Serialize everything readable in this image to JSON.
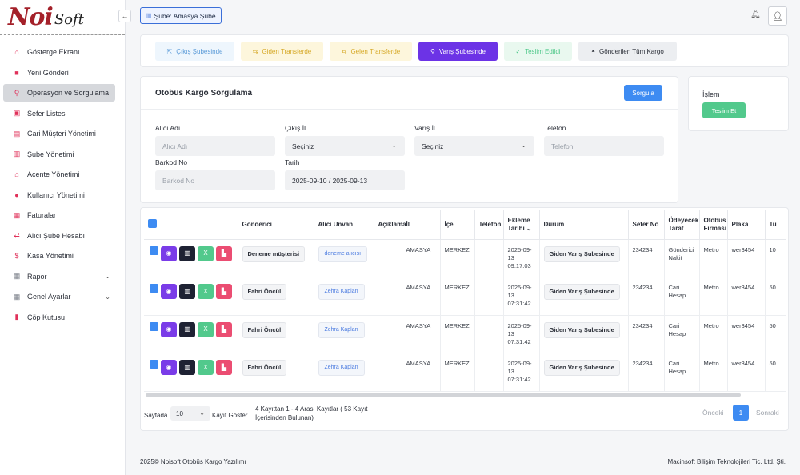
{
  "brand": {
    "noi": "Noi",
    "soft": "Soft"
  },
  "sidebar": {
    "items": [
      {
        "label": "Gösterge Ekranı",
        "icon": "home-icon"
      },
      {
        "label": "Yeni Gönderi",
        "icon": "box-icon"
      },
      {
        "label": "Operasyon ve Sorgulama",
        "icon": "search-icon"
      },
      {
        "label": "Sefer Listesi",
        "icon": "bus-icon"
      },
      {
        "label": "Cari Müşteri Yönetimi",
        "icon": "id-card-icon"
      },
      {
        "label": "Şube Yönetimi",
        "icon": "building-icon"
      },
      {
        "label": "Acente Yönetimi",
        "icon": "bank-icon"
      },
      {
        "label": "Kullanıcı Yönetimi",
        "icon": "user-icon"
      },
      {
        "label": "Faturalar",
        "icon": "invoice-icon"
      },
      {
        "label": "Alıcı Şube Hesabı",
        "icon": "exchange-icon"
      },
      {
        "label": "Kasa Yönetimi",
        "icon": "money-icon"
      },
      {
        "label": "Rapor",
        "icon": "grid-icon"
      },
      {
        "label": "Genel Ayarlar",
        "icon": "grid-icon"
      },
      {
        "label": "Çöp Kutusu",
        "icon": "trash-icon"
      }
    ]
  },
  "header": {
    "branch": "Şube: Amasya Şube"
  },
  "tabs": [
    {
      "label": "Çıkış Şubesinde",
      "bg": "#eef6fd",
      "fg": "#5b9bd8"
    },
    {
      "label": "Giden Transferde",
      "bg": "#fdf6dc",
      "fg": "#d6a928"
    },
    {
      "label": "Gelen Transferde",
      "bg": "#fdf6dc",
      "fg": "#d6a928"
    },
    {
      "label": "Varış Şubesinde",
      "bg": "#6c33e6",
      "fg": "#ffffff"
    },
    {
      "label": "Teslim Edildi",
      "bg": "#e9f8ef",
      "fg": "#52c98c"
    },
    {
      "label": "Gönderilen Tüm Kargo",
      "bg": "#eceef1",
      "fg": "#2b2f38"
    }
  ],
  "search": {
    "title": "Otobüs Kargo Sorgulama",
    "query_button": "Sorgula",
    "fields": {
      "alici_adi": {
        "label": "Alıcı Adı",
        "placeholder": "Alıcı Adı"
      },
      "cikis_il": {
        "label": "Çıkış İl",
        "value": "Seçiniz"
      },
      "varis_il": {
        "label": "Varış İl",
        "value": "Seçiniz"
      },
      "telefon": {
        "label": "Telefon",
        "placeholder": "Telefon"
      },
      "barkod": {
        "label": "Barkod No",
        "placeholder": "Barkod No"
      },
      "tarih": {
        "label": "Tarih",
        "value": "2025-09-10 / 2025-09-13"
      }
    }
  },
  "islem": {
    "title": "İşlem",
    "button": "Teslim Et"
  },
  "table": {
    "headers": [
      "Gönderici",
      "Alıcı Unvan",
      "Açıklama",
      "İl",
      "İçe",
      "Telefon",
      "Ekleme Tarihi",
      "Durum",
      "Sefer No",
      "Ödeyecek Taraf",
      "Otobüs Firması",
      "Plaka",
      "Tu"
    ],
    "rows": [
      {
        "sender": "Deneme müşterisi",
        "receiver": "deneme alıcısı",
        "il": "AMASYA",
        "ilce": "MERKEZ",
        "date": "2025-09-13 09:17:03",
        "status": "Giden Varış Şubesinde",
        "sefer": "234234",
        "payer": "Gönderici Nakit",
        "firm": "Metro",
        "plate": "wer3454",
        "tu": "10"
      },
      {
        "sender": "Fahri Öncül",
        "receiver": "Zehra Kaplan",
        "il": "AMASYA",
        "ilce": "MERKEZ",
        "date": "2025-09-13 07:31:42",
        "status": "Giden Varış Şubesinde",
        "sefer": "234234",
        "payer": "Cari Hesap",
        "firm": "Metro",
        "plate": "wer3454",
        "tu": "50"
      },
      {
        "sender": "Fahri Öncül",
        "receiver": "Zehra Kaplan",
        "il": "AMASYA",
        "ilce": "MERKEZ",
        "date": "2025-09-13 07:31:42",
        "status": "Giden Varış Şubesinde",
        "sefer": "234234",
        "payer": "Cari Hesap",
        "firm": "Metro",
        "plate": "wer3454",
        "tu": "50"
      },
      {
        "sender": "Fahri Öncül",
        "receiver": "Zehra Kaplan",
        "il": "AMASYA",
        "ilce": "MERKEZ",
        "date": "2025-09-13 07:31:42",
        "status": "Giden Varış Şubesinde",
        "sefer": "234234",
        "payer": "Cari Hesap",
        "firm": "Metro",
        "plate": "wer3454",
        "tu": "50"
      }
    ]
  },
  "pagination": {
    "per_page_label": "Sayfada",
    "per_page_value": "10",
    "show_label": "Kayıt Göster",
    "info": "4 Kayıttan 1 - 4 Arası Kayıtlar ( 53 Kayıt İçerisinden Bulunan)",
    "prev": "Önceki",
    "current": "1",
    "next": "Sonraki"
  },
  "footer": {
    "left": "2025© Noisoft Otobüs Kargo Yazılımı",
    "right": "Macinsoft Bilişim Teknolojileri Tic. Ltd. Şti."
  }
}
